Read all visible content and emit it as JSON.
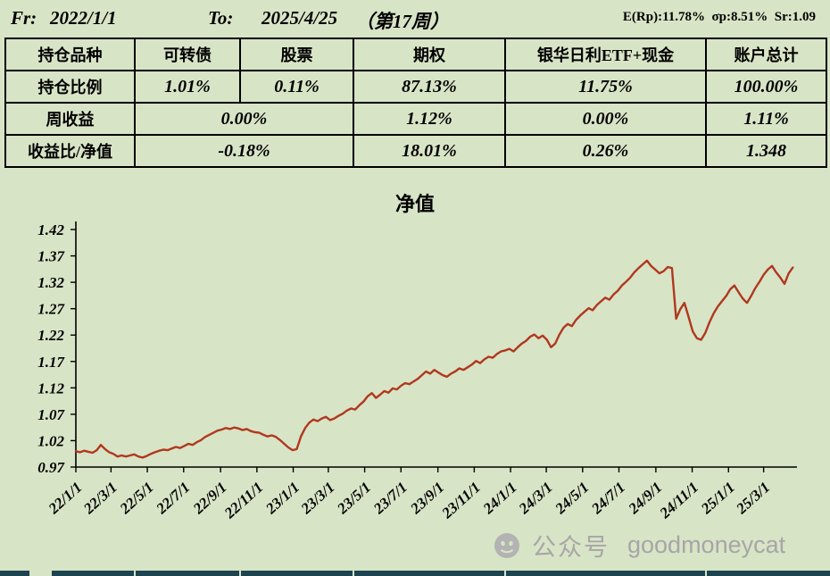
{
  "header": {
    "fr_label": "Fr:",
    "fr_value": "2022/1/1",
    "to_label": "To:",
    "to_value": "2025/4/25",
    "week_note": "（第17周）",
    "stats": "E(Rp):11.78%  σp:8.51%  Sr:1.09"
  },
  "table": {
    "rows": [
      {
        "label": "持仓品种",
        "cells": [
          "可转债",
          "股票",
          "期权",
          "银华日利ETF+现金",
          "账户总计"
        ]
      },
      {
        "label": "持仓比例",
        "cells": [
          "1.01%",
          "0.11%",
          "87.13%",
          "11.75%",
          "100.00%"
        ]
      },
      {
        "label": "周收益",
        "cells": [
          "0.00%",
          "1.12%",
          "0.00%",
          "1.11%"
        ]
      },
      {
        "label": "收益比/净值",
        "cells": [
          "-0.18%",
          "18.01%",
          "0.26%",
          "1.348"
        ]
      }
    ]
  },
  "chart_data": {
    "type": "line",
    "title": "净值",
    "xlabel": "",
    "ylabel": "",
    "ylim": [
      0.97,
      1.42
    ],
    "yticks": [
      0.97,
      1.02,
      1.07,
      1.12,
      1.17,
      1.22,
      1.27,
      1.32,
      1.37,
      1.42
    ],
    "xtick_labels": [
      "22/1/1",
      "22/3/1",
      "22/5/1",
      "22/7/1",
      "22/9/1",
      "22/11/1",
      "23/1/1",
      "23/3/1",
      "23/5/1",
      "23/7/1",
      "23/9/1",
      "23/11/1",
      "24/1/1",
      "24/3/1",
      "24/5/1",
      "24/7/1",
      "24/9/1",
      "24/11/1",
      "25/1/1",
      "25/3/1"
    ],
    "xtick_days": [
      0,
      59,
      120,
      181,
      243,
      304,
      365,
      424,
      485,
      546,
      608,
      669,
      730,
      790,
      851,
      912,
      974,
      1035,
      1096,
      1155
    ],
    "total_days": 1211,
    "point_interval_days": 7,
    "grid": false,
    "legend_position": "none",
    "line_color": "#b0381f",
    "axis_color": "#000000",
    "series": [
      {
        "name": "净值",
        "values": [
          1.0,
          0.998,
          1.001,
          0.999,
          0.997,
          1.002,
          1.012,
          1.004,
          0.998,
          0.995,
          0.99,
          0.992,
          0.99,
          0.992,
          0.994,
          0.99,
          0.988,
          0.991,
          0.995,
          0.998,
          1.001,
          1.003,
          1.002,
          1.005,
          1.008,
          1.006,
          1.01,
          1.014,
          1.012,
          1.017,
          1.021,
          1.027,
          1.031,
          1.035,
          1.039,
          1.041,
          1.044,
          1.042,
          1.045,
          1.043,
          1.04,
          1.042,
          1.038,
          1.036,
          1.035,
          1.031,
          1.028,
          1.03,
          1.027,
          1.021,
          1.014,
          1.007,
          1.002,
          1.004,
          1.028,
          1.044,
          1.054,
          1.06,
          1.057,
          1.062,
          1.065,
          1.059,
          1.062,
          1.067,
          1.071,
          1.077,
          1.081,
          1.079,
          1.087,
          1.094,
          1.104,
          1.11,
          1.101,
          1.107,
          1.114,
          1.111,
          1.119,
          1.117,
          1.124,
          1.129,
          1.127,
          1.132,
          1.137,
          1.144,
          1.151,
          1.147,
          1.154,
          1.149,
          1.144,
          1.141,
          1.147,
          1.151,
          1.157,
          1.154,
          1.159,
          1.164,
          1.171,
          1.167,
          1.174,
          1.179,
          1.177,
          1.184,
          1.189,
          1.191,
          1.194,
          1.189,
          1.197,
          1.204,
          1.209,
          1.217,
          1.221,
          1.214,
          1.219,
          1.211,
          1.197,
          1.204,
          1.221,
          1.234,
          1.241,
          1.237,
          1.249,
          1.257,
          1.264,
          1.271,
          1.267,
          1.277,
          1.284,
          1.291,
          1.287,
          1.297,
          1.304,
          1.314,
          1.321,
          1.329,
          1.339,
          1.347,
          1.354,
          1.361,
          1.351,
          1.344,
          1.337,
          1.341,
          1.349,
          1.347,
          1.251,
          1.269,
          1.281,
          1.254,
          1.227,
          1.214,
          1.211,
          1.224,
          1.244,
          1.261,
          1.274,
          1.284,
          1.294,
          1.307,
          1.314,
          1.301,
          1.289,
          1.281,
          1.294,
          1.309,
          1.321,
          1.334,
          1.344,
          1.351,
          1.339,
          1.329,
          1.317,
          1.337,
          1.348
        ]
      }
    ]
  },
  "footer": {
    "wechat_label": "公众号",
    "account": "goodmoneycat"
  }
}
